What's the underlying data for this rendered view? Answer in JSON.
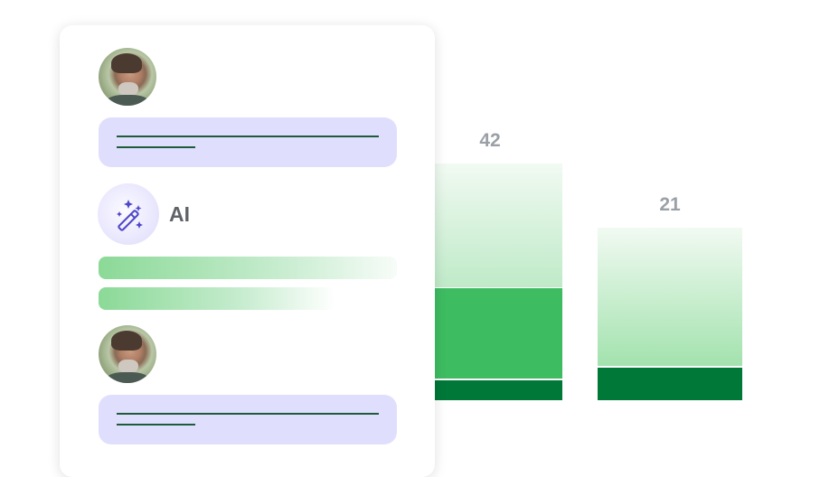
{
  "chat": {
    "ai_label": "AI",
    "icons": {
      "avatar": "user-photo-avatar",
      "ai": "magic-wand-sparkles-icon"
    }
  },
  "chart_data": {
    "type": "bar",
    "stacked": true,
    "categories": [
      "",
      ""
    ],
    "values": [
      42,
      21
    ],
    "data_labels": [
      "42",
      "21"
    ],
    "segments_percent_of_bar": [
      {
        "light": 52,
        "medium": 39,
        "dark": 9
      },
      {
        "light": 80,
        "medium": 0,
        "dark": 20
      }
    ],
    "colors": {
      "light_top": "#f1faf2",
      "light_bottom": "#a3e2ae",
      "medium": "#3ebc62",
      "dark": "#007838"
    },
    "grid": false
  }
}
